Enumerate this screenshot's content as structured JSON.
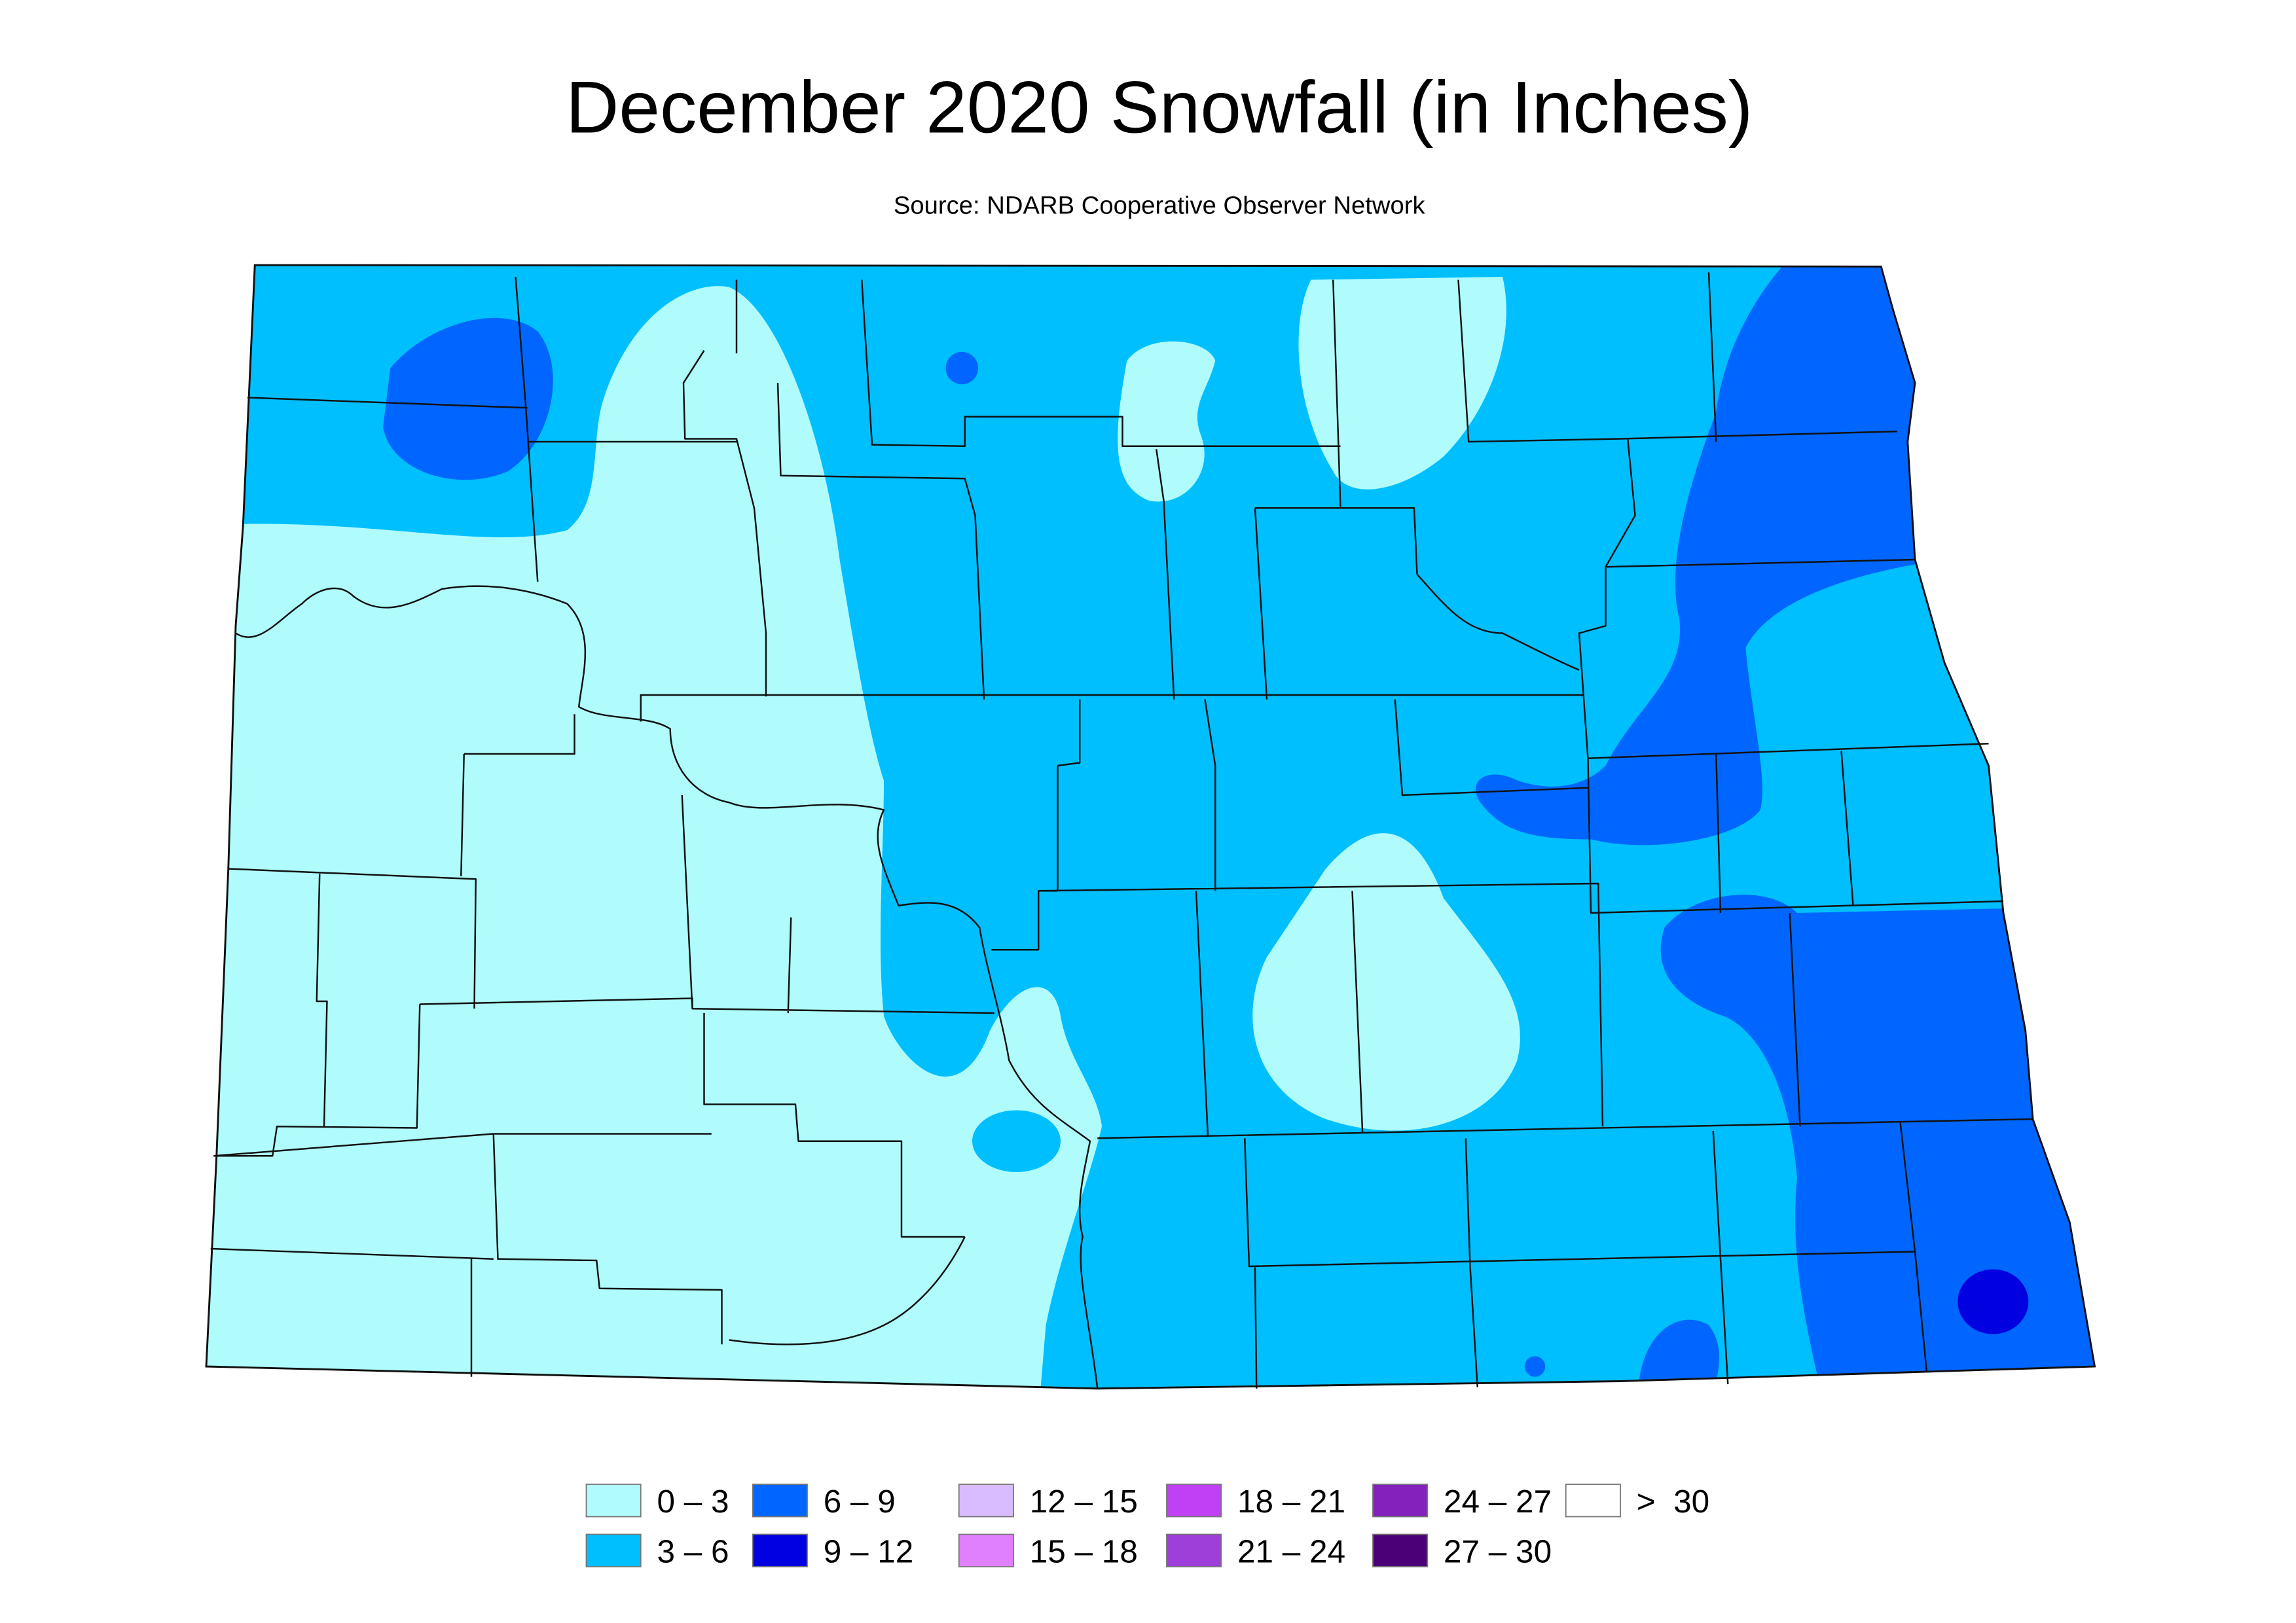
{
  "title": "December 2020 Snowfall (in Inches)",
  "subtitle": "Source: NDARB Cooperative Observer Network",
  "legend": [
    {
      "label": "0 – 3",
      "color": "#b0fcfc"
    },
    {
      "label": "3 – 6",
      "color": "#00bfff"
    },
    {
      "label": "6 – 9",
      "color": "#0066ff"
    },
    {
      "label": "9 – 12",
      "color": "#0000e0"
    },
    {
      "label": "12 – 15",
      "color": "#d9bbff"
    },
    {
      "label": "15 – 18",
      "color": "#e080ff"
    },
    {
      "label": "18 – 21",
      "color": "#c040f5"
    },
    {
      "label": "21 – 24",
      "color": "#9d3fd8"
    },
    {
      "label": "24 – 27",
      "color": "#8420bb"
    },
    {
      "label": "27 – 30",
      "color": "#4b0077"
    },
    {
      "label": ">  30",
      "color": "#ffffff"
    }
  ]
}
